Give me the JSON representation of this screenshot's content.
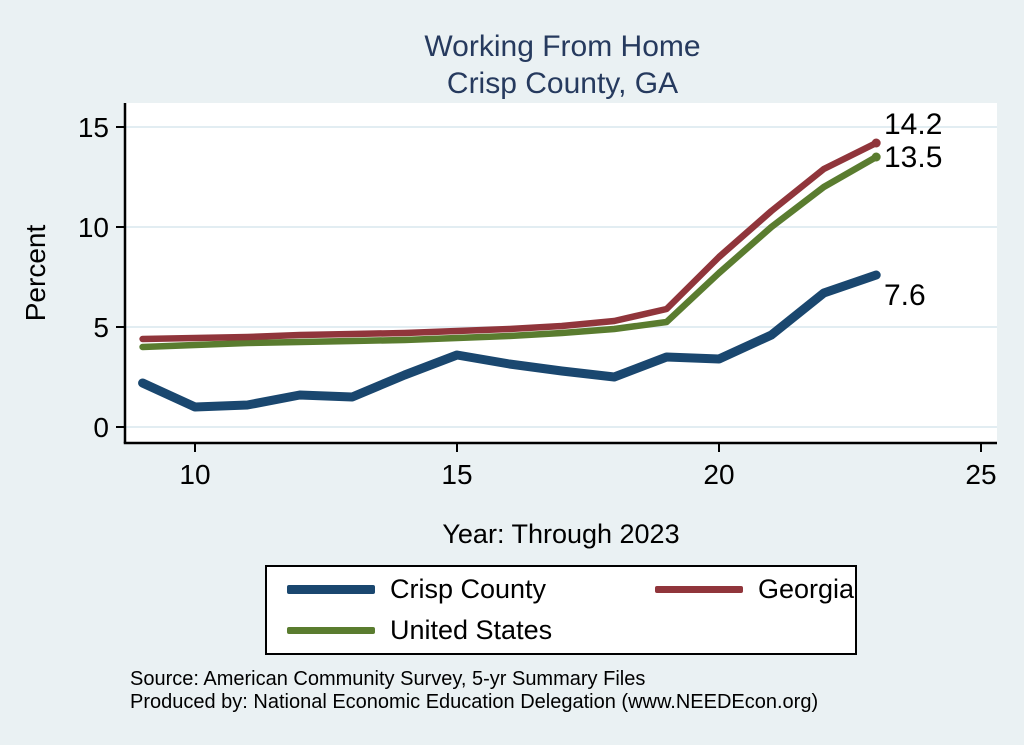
{
  "title": {
    "line1": "Working From Home",
    "line2": "Crisp County, GA"
  },
  "chart_data": {
    "type": "line",
    "x": [
      9,
      10,
      11,
      12,
      13,
      14,
      15,
      16,
      17,
      18,
      19,
      20,
      21,
      22,
      23
    ],
    "series": [
      {
        "name": "Crisp County",
        "color": "#1a476f",
        "line_width": 9,
        "values": [
          2.2,
          1.0,
          1.1,
          1.6,
          1.5,
          2.6,
          3.6,
          3.15,
          2.8,
          2.5,
          3.5,
          3.4,
          4.6,
          6.7,
          7.6
        ],
        "end_label": "7.6",
        "end_marker": false
      },
      {
        "name": "Georgia",
        "color": "#90353b",
        "line_width": 6.5,
        "values": [
          4.4,
          4.45,
          4.5,
          4.6,
          4.65,
          4.7,
          4.8,
          4.9,
          5.05,
          5.3,
          5.9,
          8.5,
          10.8,
          12.9,
          14.2
        ],
        "end_label": "14.2",
        "end_marker": true
      },
      {
        "name": "United States",
        "color": "#5a7c2f",
        "line_width": 6.5,
        "values": [
          4.0,
          4.1,
          4.2,
          4.25,
          4.3,
          4.35,
          4.45,
          4.55,
          4.7,
          4.9,
          5.25,
          7.7,
          10.0,
          12.0,
          13.5
        ],
        "end_label": "13.5",
        "end_marker": true
      }
    ],
    "xlabel": "Year: Through 2023",
    "ylabel": "Percent",
    "xticks": [
      10,
      15,
      20,
      25
    ],
    "yticks": [
      0,
      5,
      10,
      15
    ],
    "xlim": [
      8.65,
      25.3
    ],
    "ylim": [
      -0.8,
      16.2
    ],
    "grid": true,
    "legend_position": "bottom",
    "plot_bg": "#ffffff",
    "page_bg": "#eaf1f3",
    "grid_color": "#e2edf2",
    "axis_color": "#000000",
    "title_color": "#263a5e"
  },
  "legend": {
    "items": [
      {
        "label": "Crisp County",
        "series_index": 0
      },
      {
        "label": "Georgia",
        "series_index": 1
      },
      {
        "label": "United States",
        "series_index": 2
      }
    ]
  },
  "footer": {
    "line1": "Source: American Community Survey, 5-yr Summary Files",
    "line2": "Produced by: National Economic Education Delegation (www.NEEDEcon.org)"
  }
}
